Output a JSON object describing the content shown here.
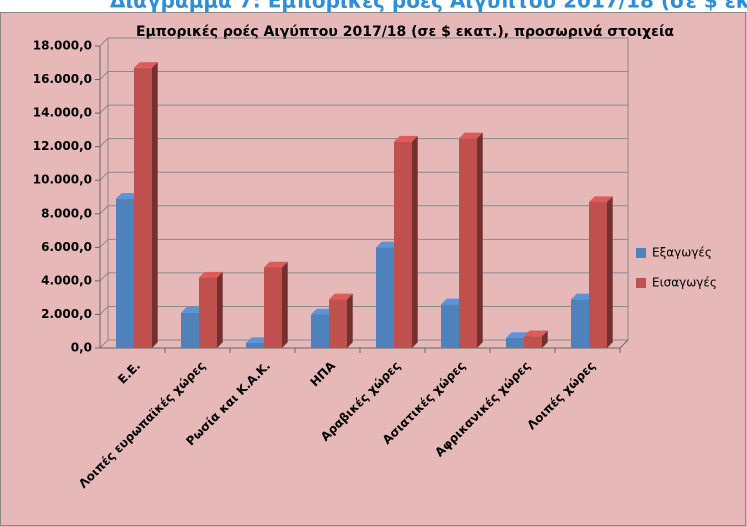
{
  "heading": "Διάγραμμα 7: Εμπορικές ροές Αιγύπτου 2017/18 (σε $ εκ",
  "chart_data": {
    "type": "bar3d",
    "title": "Εμπορικές ροές Αιγύπτου 2017/18 (σε $ εκατ.), προσωρινά στοιχεία",
    "categories": [
      "Ε.Ε.",
      "Λοιπές ευρωπαϊκές χώρες",
      "Ρωσία και Κ.Α.Κ.",
      "ΗΠΑ",
      "Αραβικές χώρες",
      "Ασιατικές χώρες",
      "Αφρικανικές χώρες",
      "Λοιπές χώρες"
    ],
    "series": [
      {
        "name": "Εξαγωγές",
        "color": "#4f81bd",
        "values": [
          8900,
          2100,
          300,
          2000,
          6000,
          2600,
          600,
          2900
        ]
      },
      {
        "name": "Εισαγωγές",
        "color": "#c0504d",
        "values": [
          16700,
          4200,
          4800,
          2900,
          12300,
          12500,
          700,
          8700
        ]
      }
    ],
    "ylim": [
      0,
      18000
    ],
    "yticks": [
      {
        "value": 0,
        "label": "0,0"
      },
      {
        "value": 2000,
        "label": "2.000,0"
      },
      {
        "value": 4000,
        "label": "4.000,0"
      },
      {
        "value": 6000,
        "label": "6.000,0"
      },
      {
        "value": 8000,
        "label": "8.000,0"
      },
      {
        "value": 10000,
        "label": "10.000,0"
      },
      {
        "value": 12000,
        "label": "12.000,0"
      },
      {
        "value": 14000,
        "label": "14.000,0"
      },
      {
        "value": 16000,
        "label": "16.000,0"
      },
      {
        "value": 18000,
        "label": "18.000,0"
      }
    ],
    "grid": true,
    "legend": "right"
  }
}
